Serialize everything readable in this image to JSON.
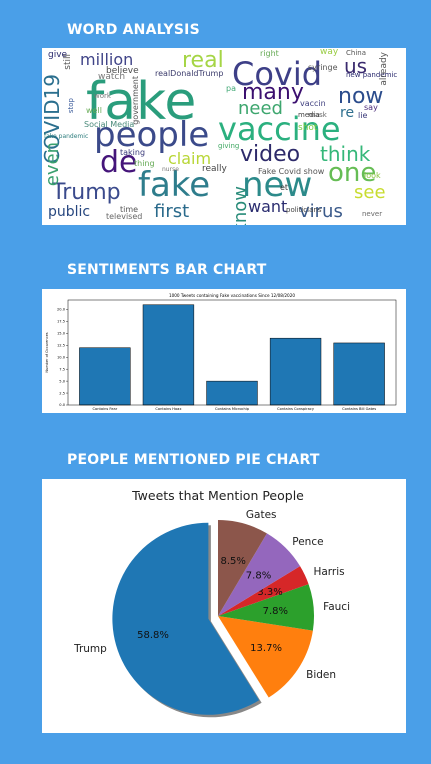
{
  "headings": {
    "word_analysis": "WORD ANALYSIS",
    "sentiments": "SENTIMENTS BAR CHART",
    "people": "PEOPLE MENTIONED PIE CHART"
  },
  "wordcloud": {
    "words": [
      "fake",
      "people",
      "vaccine",
      "Covid",
      "fake",
      "new",
      "de",
      "video",
      "COVID19",
      "Trump",
      "one",
      "think",
      "million",
      "real",
      "many",
      "now",
      "need",
      "us",
      "claim",
      "first",
      "virus",
      "see",
      "want",
      "know",
      "even",
      "public",
      "re",
      "Fake Covid show",
      "realDonaldTrump",
      "Social Media",
      "fake pandemic",
      "syringe",
      "vaccin",
      "media",
      "mask",
      "China",
      "right",
      "way",
      "new pandemic",
      "say",
      "lie",
      "already",
      "shot",
      "look",
      "never",
      "taking",
      "thing",
      "nurse",
      "give",
      "still",
      "believe",
      "government",
      "work",
      "time",
      "televised",
      "giving",
      "really",
      "politicians",
      "pa",
      "stop",
      "well",
      "et",
      "watch"
    ]
  },
  "chart_data": [
    {
      "type": "bar",
      "title": "1000 Tweets containing Fake vaccinations Since 12/08/2020",
      "ylabel": "Number of Occurences",
      "categories": [
        "Contains Fear",
        "Contains Hoax",
        "Contains Microchip",
        "Contains Conspiracy",
        "Contains Bill Gates"
      ],
      "values": [
        12,
        21,
        5,
        14,
        13
      ],
      "ylim": [
        0,
        22
      ],
      "yticks": [
        "0.0",
        "2.5",
        "5.0",
        "7.5",
        "10.0",
        "12.5",
        "15.0",
        "17.5",
        "20.0"
      ],
      "colors": [
        "#1f77b4"
      ]
    },
    {
      "type": "pie",
      "title": "Tweets that Mention People",
      "labels": [
        "Trump",
        "Biden",
        "Fauci",
        "Harris",
        "Pence",
        "Gates"
      ],
      "values": [
        58.8,
        13.7,
        7.8,
        3.3,
        7.8,
        8.5
      ],
      "pct_labels": [
        "58.8%",
        "13.7%",
        "7.8%",
        "3.3%",
        "7.8%",
        "8.5%"
      ],
      "colors": [
        "#1f77b4",
        "#ff7f0e",
        "#2ca02c",
        "#d62728",
        "#9467bd",
        "#8c564b"
      ],
      "explode": "Trump"
    }
  ]
}
